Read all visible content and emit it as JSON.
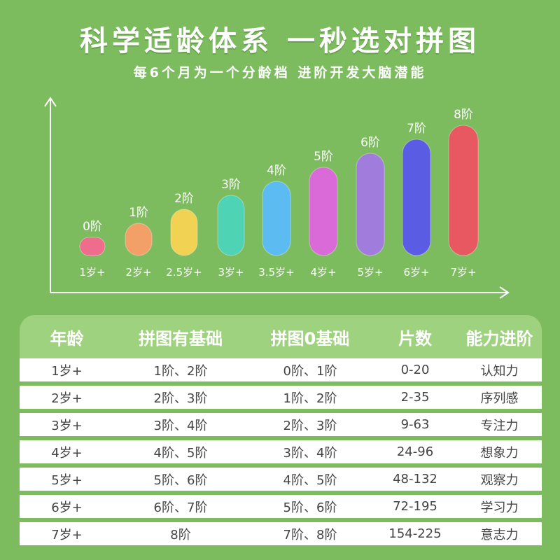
{
  "header": {
    "title": "科学适龄体系  一秒选对拼图",
    "subtitle": "每6个月为一个分龄档 进阶开发大脑潜能"
  },
  "chart_data": {
    "type": "bar",
    "categories": [
      "1岁+",
      "2岁+",
      "2.5岁+",
      "3岁+",
      "3.5岁+",
      "4岁+",
      "5岁+",
      "6岁+",
      "7岁+"
    ],
    "values": [
      0,
      1,
      2,
      3,
      4,
      5,
      6,
      7,
      8
    ],
    "data_labels": [
      "0阶",
      "1阶",
      "2阶",
      "3阶",
      "4阶",
      "5阶",
      "6阶",
      "7阶",
      "8阶"
    ],
    "colors": [
      "#ef6d8c",
      "#f3a068",
      "#f2d253",
      "#4fd3b5",
      "#5cbcf2",
      "#d96ad8",
      "#a07ddc",
      "#5b5ce4",
      "#e85860"
    ],
    "title": "",
    "xlabel": "",
    "ylabel": "",
    "ylim": [
      0,
      8
    ]
  },
  "table": {
    "headers": [
      "年龄",
      "拼图有基础",
      "拼图0基础",
      "片数",
      "能力进阶"
    ],
    "rows": [
      [
        "1岁+",
        "1阶、2阶",
        "0阶、1阶",
        "0-20",
        "认知力"
      ],
      [
        "2岁+",
        "2阶、3阶",
        "1阶、2阶",
        "2-35",
        "序列感"
      ],
      [
        "3岁+",
        "3阶、4阶",
        "2阶、3阶",
        "9-63",
        "专注力"
      ],
      [
        "4岁+",
        "4阶、5阶",
        "3阶、4阶",
        "24-96",
        "想象力"
      ],
      [
        "5岁+",
        "5阶、6阶",
        "4阶、5阶",
        "48-132",
        "观察力"
      ],
      [
        "6岁+",
        "6阶、7阶",
        "5阶、6阶",
        "72-195",
        "学习力"
      ],
      [
        "7岁+",
        "8阶",
        "7阶、8阶",
        "154-225",
        "意志力"
      ]
    ]
  }
}
